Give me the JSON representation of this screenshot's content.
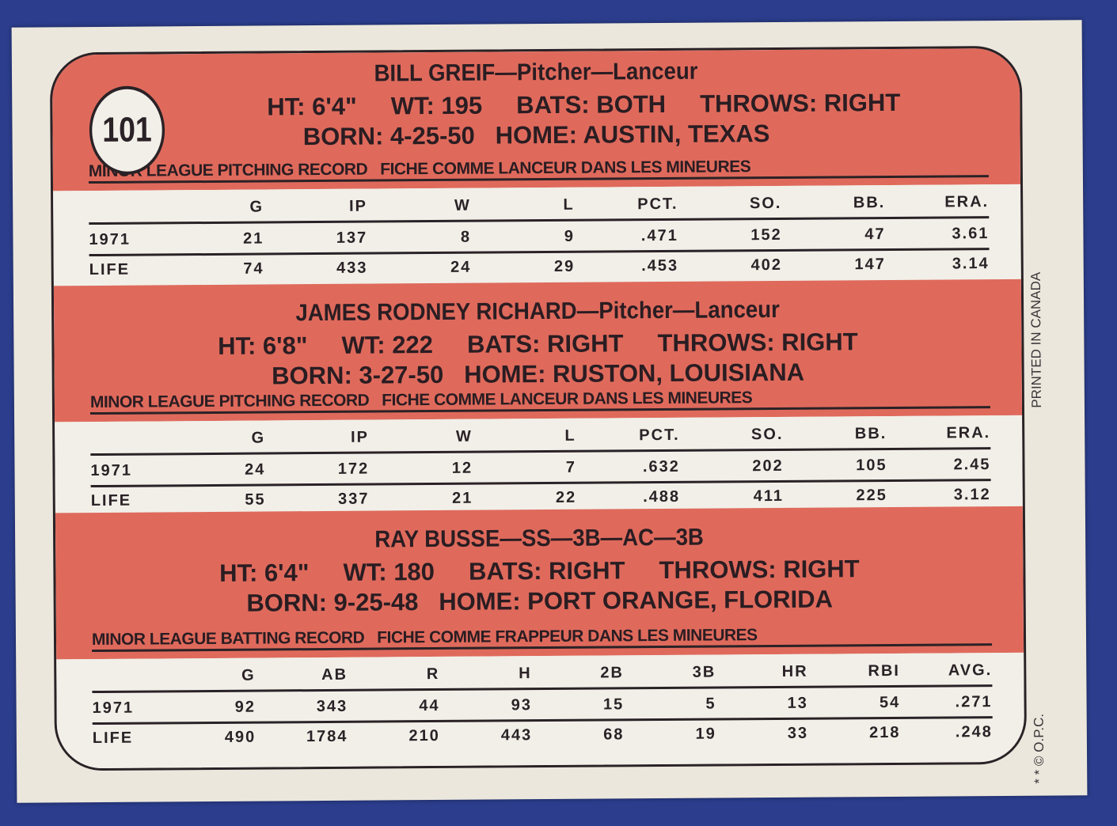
{
  "card_number": "101",
  "side_text": {
    "printed": "PRINTED IN CANADA",
    "copyright": "* * © O.P.C."
  },
  "colors": {
    "background": "#2b3d8c",
    "card": "#ebe7dc",
    "panel": "#df6a5c",
    "ink": "#2a2226"
  },
  "players": [
    {
      "name": "BILL GREIF—Pitcher—Lanceur",
      "stats_line": "HT: 6'4\"     WT: 195     BATS: BOTH     THROWS: RIGHT",
      "born_line": "BORN: 4-25-50   HOME: AUSTIN, TEXAS",
      "record_title": "MINOR LEAGUE PITCHING RECORD   FICHE COMME LANCEUR DANS LES MINEURES",
      "headers": [
        "",
        "G",
        "IP",
        "W",
        "L",
        "PCT.",
        "SO.",
        "BB.",
        "ERA."
      ],
      "rows": [
        [
          "1971",
          "21",
          "137",
          "8",
          "9",
          ".471",
          "152",
          "47",
          "3.61"
        ],
        [
          "LIFE",
          "74",
          "433",
          "24",
          "29",
          ".453",
          "402",
          "147",
          "3.14"
        ]
      ]
    },
    {
      "name": "JAMES RODNEY RICHARD—Pitcher—Lanceur",
      "stats_line": "HT: 6'8\"     WT: 222     BATS: RIGHT     THROWS: RIGHT",
      "born_line": "BORN: 3-27-50   HOME: RUSTON, LOUISIANA",
      "record_title": "MINOR LEAGUE PITCHING RECORD   FICHE COMME LANCEUR DANS LES MINEURES",
      "headers": [
        "",
        "G",
        "IP",
        "W",
        "L",
        "PCT.",
        "SO.",
        "BB.",
        "ERA."
      ],
      "rows": [
        [
          "1971",
          "24",
          "172",
          "12",
          "7",
          ".632",
          "202",
          "105",
          "2.45"
        ],
        [
          "LIFE",
          "55",
          "337",
          "21",
          "22",
          ".488",
          "411",
          "225",
          "3.12"
        ]
      ]
    },
    {
      "name": "RAY BUSSE—SS—3B—AC—3B",
      "stats_line": "HT: 6'4\"     WT: 180     BATS: RIGHT     THROWS: RIGHT",
      "born_line": "BORN: 9-25-48   HOME: PORT ORANGE, FLORIDA",
      "record_title": "MINOR LEAGUE BATTING RECORD   FICHE COMME FRAPPEUR DANS LES MINEURES",
      "headers": [
        "",
        "G",
        "AB",
        "R",
        "H",
        "2B",
        "3B",
        "HR",
        "RBI",
        "AVG."
      ],
      "rows": [
        [
          "1971",
          "92",
          "343",
          "44",
          "93",
          "15",
          "5",
          "13",
          "54",
          ".271"
        ],
        [
          "LIFE",
          "490",
          "1784",
          "210",
          "443",
          "68",
          "19",
          "33",
          "218",
          ".248"
        ]
      ]
    }
  ]
}
